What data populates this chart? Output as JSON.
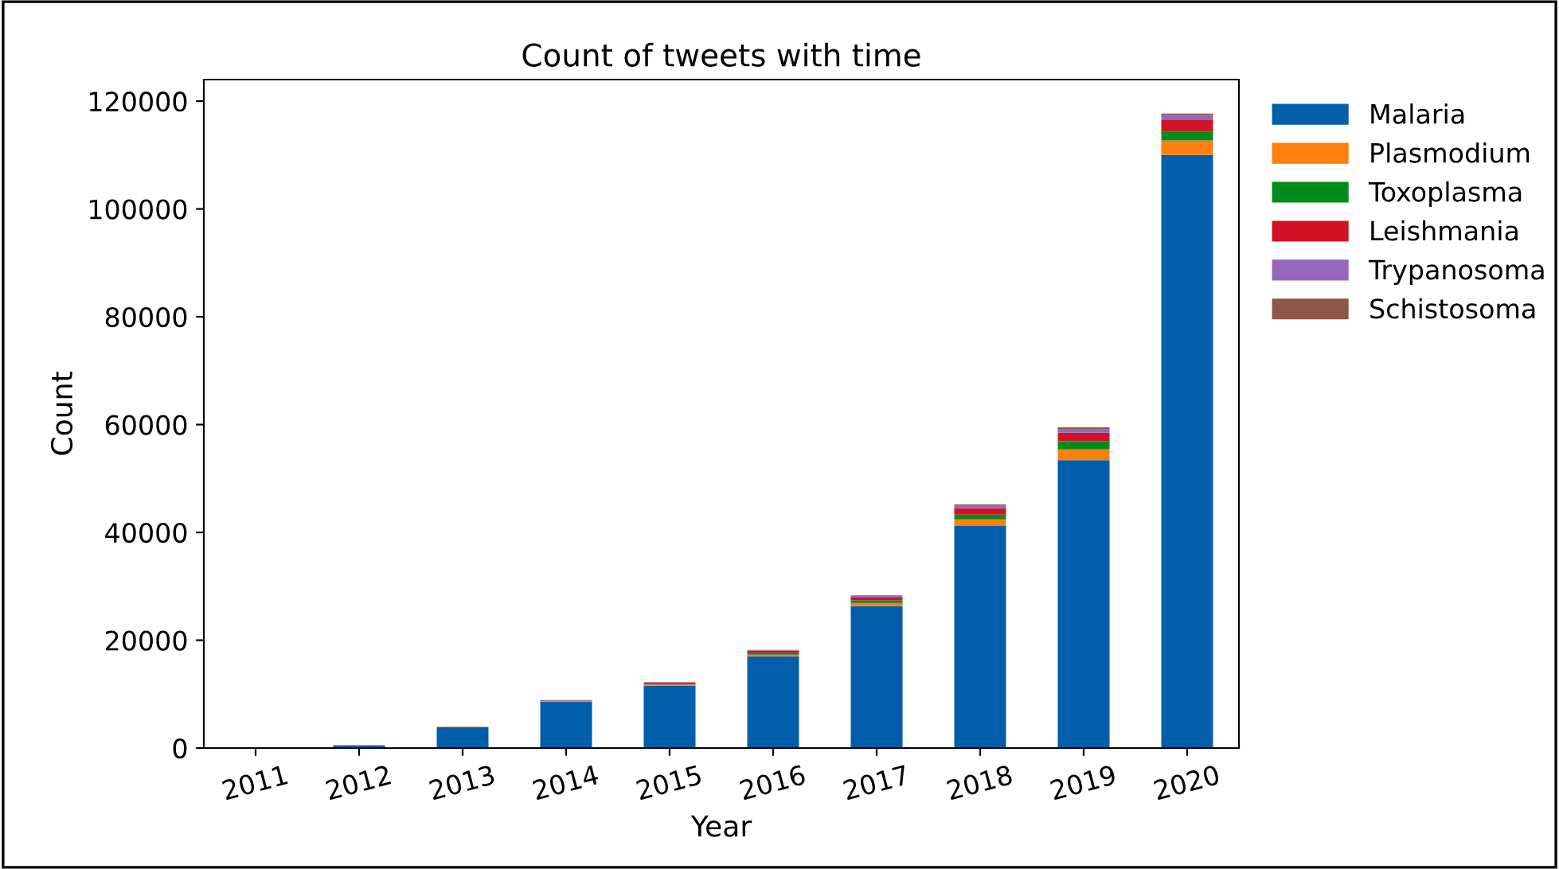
{
  "chart_data": {
    "type": "bar",
    "title": "Count of tweets with time",
    "xlabel": "Year",
    "ylabel": "Count",
    "stacked": true,
    "legend": "top right",
    "categories": [
      "2011",
      "2012",
      "2013",
      "2014",
      "2015",
      "2016",
      "2017",
      "2018",
      "2019",
      "2020"
    ],
    "series": [
      {
        "name": "Malaria",
        "color": "#005eab",
        "values": [
          null,
          500,
          3900,
          8600,
          11600,
          17000,
          26300,
          41200,
          53400,
          110000
        ]
      },
      {
        "name": "Plasmodium",
        "color": "#ff7f0e",
        "values": [
          0,
          0,
          100,
          100,
          200,
          300,
          600,
          1200,
          2000,
          2700
        ]
      },
      {
        "name": "Toxoplasma",
        "color": "#008c1a",
        "values": [
          0,
          0,
          0,
          100,
          100,
          300,
          500,
          900,
          1500,
          1600
        ]
      },
      {
        "name": "Leishmania",
        "color": "#d01326",
        "values": [
          0,
          0,
          0,
          100,
          200,
          400,
          600,
          1200,
          1600,
          2300
        ]
      },
      {
        "name": "Trypanosoma",
        "color": "#9467bd",
        "values": [
          0,
          0,
          0,
          0,
          100,
          100,
          200,
          500,
          700,
          800
        ]
      },
      {
        "name": "Schistosoma",
        "color": "#8c564b",
        "values": [
          0,
          0,
          0,
          0,
          0,
          100,
          100,
          200,
          300,
          300
        ]
      }
    ],
    "ylim": [
      0,
      124000
    ],
    "yticks": [
      0,
      20000,
      40000,
      60000,
      80000,
      100000,
      120000
    ]
  }
}
